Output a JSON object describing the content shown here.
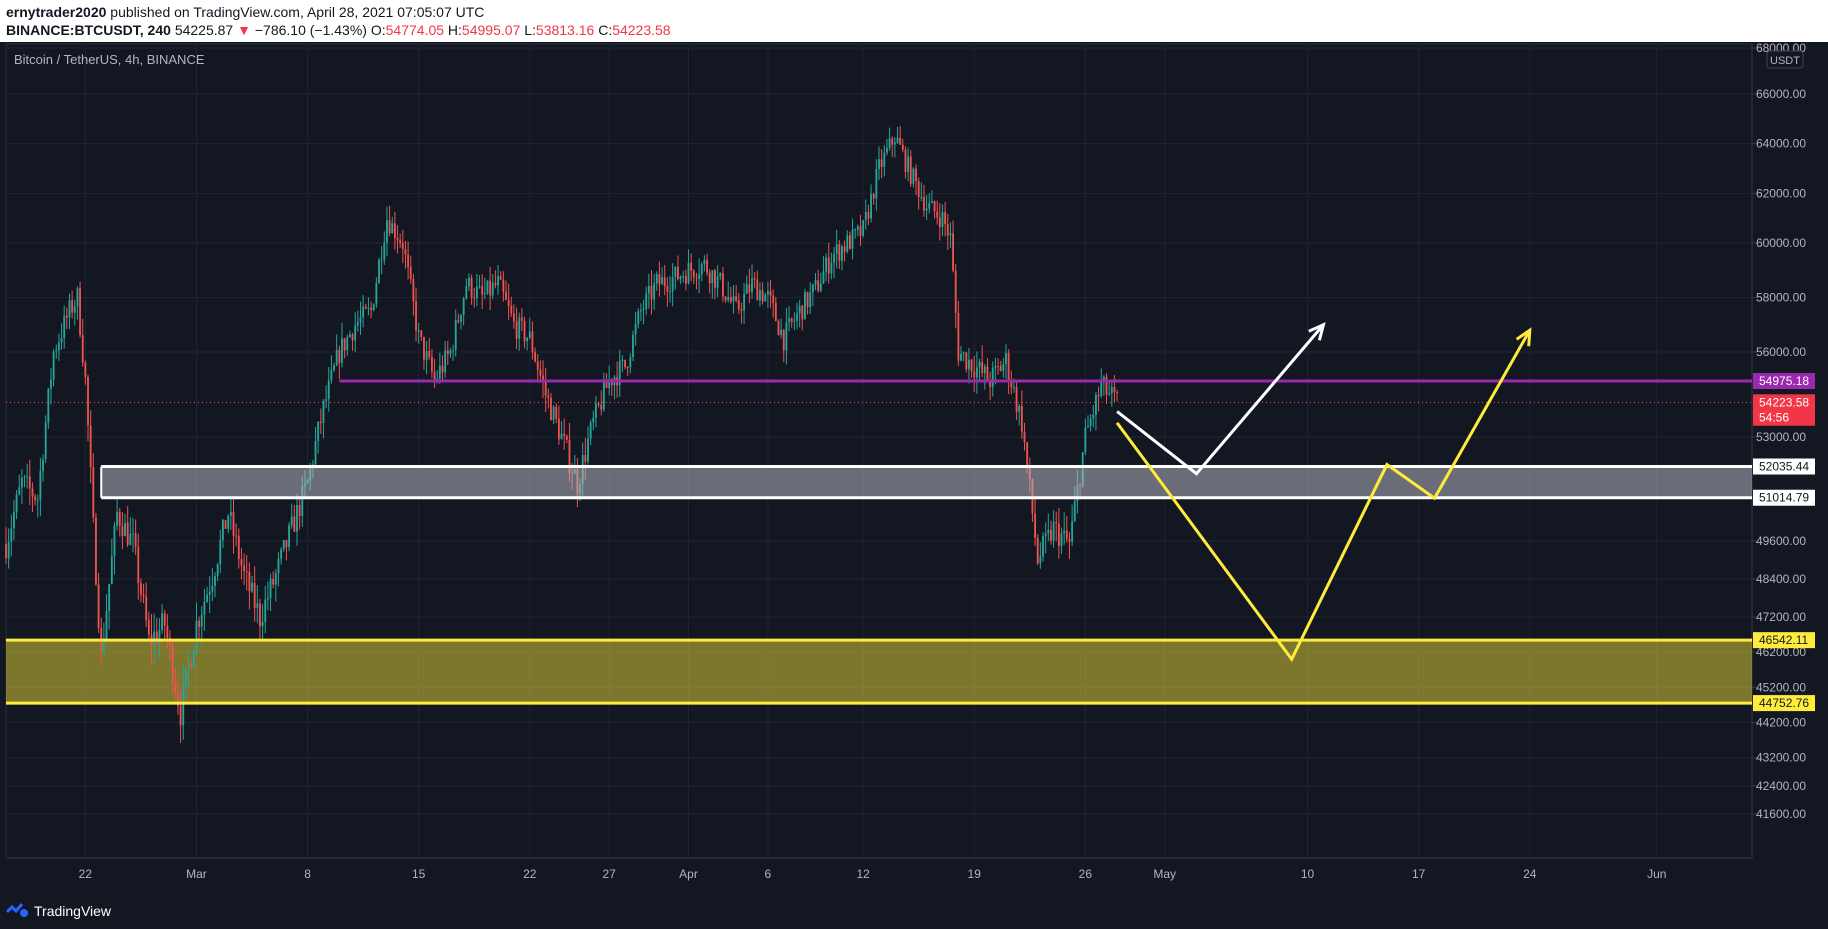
{
  "header": {
    "publisher": "ernytrader2020",
    "published_text": "published on TradingView.com, April 28, 2021 07:05:07 UTC",
    "symbol": "BINANCE:BTCUSDT, 240",
    "last_price": "54225.87",
    "change": "−786.10 (−1.43%)",
    "open_label": "O:",
    "open": "54774.05",
    "high_label": "H:",
    "high": "54995.07",
    "low_label": "L:",
    "low": "53813.16",
    "close_label": "C:",
    "close": "54223.58"
  },
  "chart_title": "Bitcoin / TetherUS, 4h, BINANCE",
  "currency": "USDT",
  "price_axis_ticks": [
    "68000.00",
    "66000.00",
    "64000.00",
    "62000.00",
    "60000.00",
    "58000.00",
    "56000.00",
    "53000.00",
    "49600.00",
    "48400.00",
    "47200.00",
    "46200.00",
    "45200.00",
    "44200.00",
    "43200.00",
    "42400.00",
    "41600.00"
  ],
  "price_labels": [
    {
      "text": "54975.18",
      "value": 54975.18,
      "color": "#9c27b0",
      "text_color": "#ffffff"
    },
    {
      "text": "54223.58",
      "value": 54223.58,
      "color": "#f23645",
      "text_color": "#ffffff"
    },
    {
      "text": "54:56",
      "value": 53680,
      "color": "#f23645",
      "text_color": "#ffffff"
    },
    {
      "text": "52035.44",
      "value": 52035.44,
      "color": "#ffffff",
      "text_color": "#131722"
    },
    {
      "text": "51014.79",
      "value": 51014.79,
      "color": "#ffffff",
      "text_color": "#131722"
    },
    {
      "text": "46542.11",
      "value": 46542.11,
      "color": "#ffeb3b",
      "text_color": "#131722"
    },
    {
      "text": "44752.76",
      "value": 44752.76,
      "color": "#ffeb3b",
      "text_color": "#131722"
    }
  ],
  "time_axis_ticks": [
    {
      "label": "22",
      "date": "2021-02-22"
    },
    {
      "label": "Mar",
      "date": "2021-03-01"
    },
    {
      "label": "8",
      "date": "2021-03-08"
    },
    {
      "label": "15",
      "date": "2021-03-15"
    },
    {
      "label": "22",
      "date": "2021-03-22"
    },
    {
      "label": "27",
      "date": "2021-03-27"
    },
    {
      "label": "Apr",
      "date": "2021-04-01"
    },
    {
      "label": "6",
      "date": "2021-04-06"
    },
    {
      "label": "12",
      "date": "2021-04-12"
    },
    {
      "label": "19",
      "date": "2021-04-19"
    },
    {
      "label": "26",
      "date": "2021-04-26"
    },
    {
      "label": "May",
      "date": "2021-05-01"
    },
    {
      "label": "10",
      "date": "2021-05-10"
    },
    {
      "label": "17",
      "date": "2021-05-17"
    },
    {
      "label": "24",
      "date": "2021-05-24"
    },
    {
      "label": "Jun",
      "date": "2021-06-01"
    }
  ],
  "footer": {
    "brand": "TradingView"
  },
  "colors": {
    "background": "#131722",
    "up": "#26a69a",
    "down": "#ef5350",
    "purple": "#9c27b0",
    "yellow": "#ffeb3b",
    "white": "#ffffff"
  },
  "chart_data": {
    "type": "candlestick",
    "title": "Bitcoin / TetherUS, 4h, BINANCE",
    "interval": "4h",
    "x_range": [
      "2021-02-17",
      "2021-06-07"
    ],
    "y_unit": "USDT",
    "path": [
      [
        "2021-02-17",
        49500
      ],
      [
        "2021-02-18",
        51500
      ],
      [
        "2021-02-19",
        51000
      ],
      [
        "2021-02-20",
        56000
      ],
      [
        "2021-02-21",
        57500
      ],
      [
        "2021-02-21T12:00",
        58000
      ],
      [
        "2021-02-22",
        55000
      ],
      [
        "2021-02-22T12:00",
        50000
      ],
      [
        "2021-02-23",
        46000
      ],
      [
        "2021-02-24",
        50500
      ],
      [
        "2021-02-25",
        49500
      ],
      [
        "2021-02-26",
        46500
      ],
      [
        "2021-02-27",
        47000
      ],
      [
        "2021-02-28",
        44500
      ],
      [
        "2021-03-01",
        47000
      ],
      [
        "2021-03-02",
        48500
      ],
      [
        "2021-03-03",
        50500
      ],
      [
        "2021-03-04",
        48500
      ],
      [
        "2021-03-05",
        47200
      ],
      [
        "2021-03-06",
        48500
      ],
      [
        "2021-03-07",
        50000
      ],
      [
        "2021-03-08",
        51500
      ],
      [
        "2021-03-09",
        54000
      ],
      [
        "2021-03-10",
        56000
      ],
      [
        "2021-03-11",
        57000
      ],
      [
        "2021-03-12",
        57500
      ],
      [
        "2021-03-13",
        61000
      ],
      [
        "2021-03-14",
        60000
      ],
      [
        "2021-03-15",
        56500
      ],
      [
        "2021-03-16",
        55000
      ],
      [
        "2021-03-17",
        56000
      ],
      [
        "2021-03-18",
        58500
      ],
      [
        "2021-03-19",
        58000
      ],
      [
        "2021-03-20",
        58500
      ],
      [
        "2021-03-21",
        57000
      ],
      [
        "2021-03-22",
        56500
      ],
      [
        "2021-03-23",
        54500
      ],
      [
        "2021-03-24",
        53000
      ],
      [
        "2021-03-25",
        51500
      ],
      [
        "2021-03-26",
        53500
      ],
      [
        "2021-03-27",
        55000
      ],
      [
        "2021-03-28",
        55500
      ],
      [
        "2021-03-29",
        57500
      ],
      [
        "2021-03-30",
        58500
      ],
      [
        "2021-03-31",
        58700
      ],
      [
        "2021-04-01",
        59000
      ],
      [
        "2021-04-02",
        59200
      ],
      [
        "2021-04-03",
        58500
      ],
      [
        "2021-04-04",
        57500
      ],
      [
        "2021-04-05",
        58500
      ],
      [
        "2021-04-06",
        58000
      ],
      [
        "2021-04-07",
        56500
      ],
      [
        "2021-04-08",
        57500
      ],
      [
        "2021-04-09",
        58300
      ],
      [
        "2021-04-10",
        59500
      ],
      [
        "2021-04-11",
        60000
      ],
      [
        "2021-04-12",
        60500
      ],
      [
        "2021-04-13",
        63000
      ],
      [
        "2021-04-14",
        64300
      ],
      [
        "2021-04-15",
        62800
      ],
      [
        "2021-04-16",
        61500
      ],
      [
        "2021-04-17",
        61000
      ],
      [
        "2021-04-17T12:00",
        60200
      ],
      [
        "2021-04-18",
        56000
      ],
      [
        "2021-04-19",
        55500
      ],
      [
        "2021-04-20",
        55000
      ],
      [
        "2021-04-21",
        55700
      ],
      [
        "2021-04-22",
        53500
      ],
      [
        "2021-04-23",
        49000
      ],
      [
        "2021-04-24",
        50000
      ],
      [
        "2021-04-25",
        49500
      ],
      [
        "2021-04-26",
        53000
      ],
      [
        "2021-04-27",
        54800
      ],
      [
        "2021-04-28",
        54224
      ]
    ],
    "levels": [
      {
        "name": "resistance",
        "value": 54975.18,
        "color": "#9c27b0",
        "from": "2021-03-10"
      },
      {
        "name": "zone-white-top",
        "value": 52035.44,
        "color": "#ffffff",
        "from": "2021-02-23"
      },
      {
        "name": "zone-white-bottom",
        "value": 51014.79,
        "color": "#ffffff",
        "from": "2021-02-23"
      },
      {
        "name": "zone-yellow-top",
        "value": 46542.11,
        "color": "#ffeb3b",
        "from": "2021-02-17"
      },
      {
        "name": "zone-yellow-bottom",
        "value": 44752.76,
        "color": "#ffeb3b",
        "from": "2021-02-17"
      }
    ],
    "projections": [
      {
        "name": "white-projection",
        "color": "#ffffff",
        "points": [
          [
            "2021-04-28",
            53900
          ],
          [
            "2021-05-03",
            51800
          ],
          [
            "2021-05-11",
            57000
          ]
        ]
      },
      {
        "name": "yellow-projection",
        "color": "#ffeb3b",
        "points": [
          [
            "2021-04-28",
            53500
          ],
          [
            "2021-05-09",
            46000
          ],
          [
            "2021-05-15",
            52100
          ],
          [
            "2021-05-18",
            51000
          ],
          [
            "2021-05-24",
            56800
          ]
        ]
      }
    ]
  }
}
